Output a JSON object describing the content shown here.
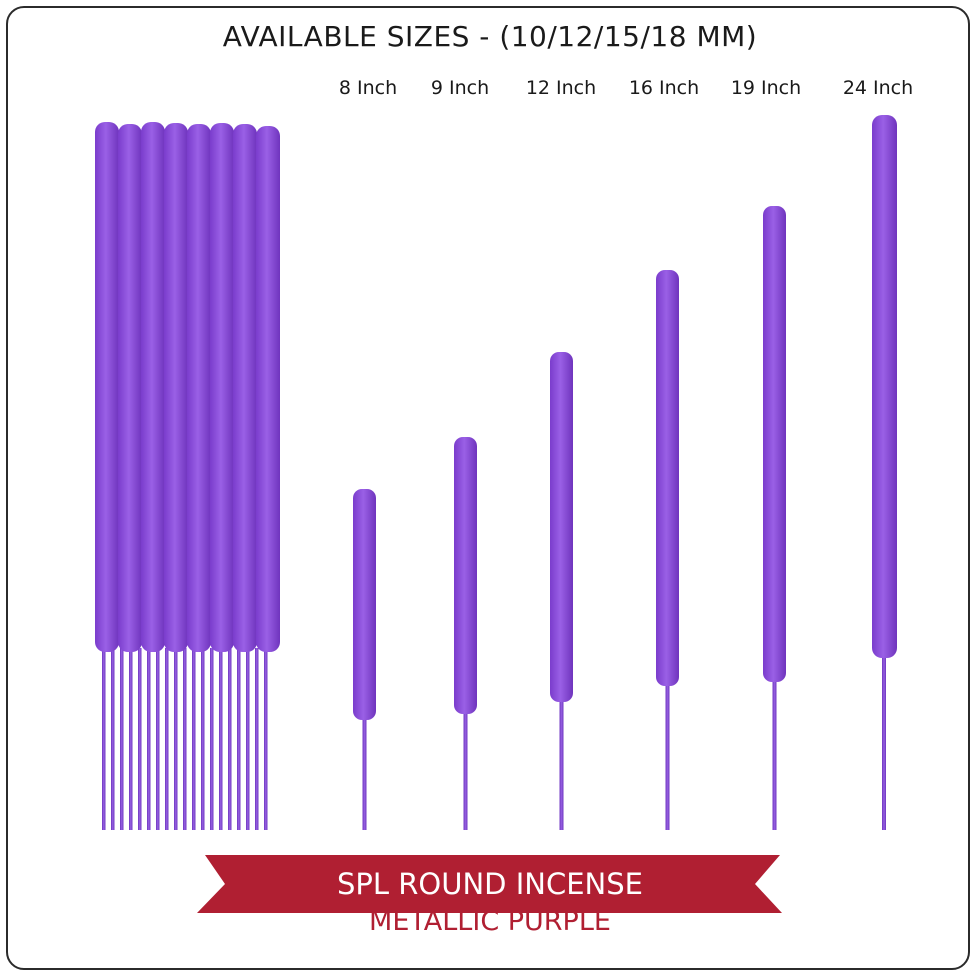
{
  "header": {
    "title": "AVAILABLE SIZES - (10/12/15/18 MM)"
  },
  "sizes": [
    {
      "label": "8 Inch"
    },
    {
      "label": "9 Inch"
    },
    {
      "label": "12 Inch"
    },
    {
      "label": "16 Inch"
    },
    {
      "label": "19 Inch"
    },
    {
      "label": "24 Inch"
    }
  ],
  "banner": {
    "title": "SPL ROUND INCENSE",
    "subtitle": "METALLIC PURPLE"
  },
  "colors": {
    "stick": "#8a4fd8",
    "stick_dark": "#6f36bf",
    "banner": "#b01f32",
    "subtitle_text": "#b01f32"
  }
}
